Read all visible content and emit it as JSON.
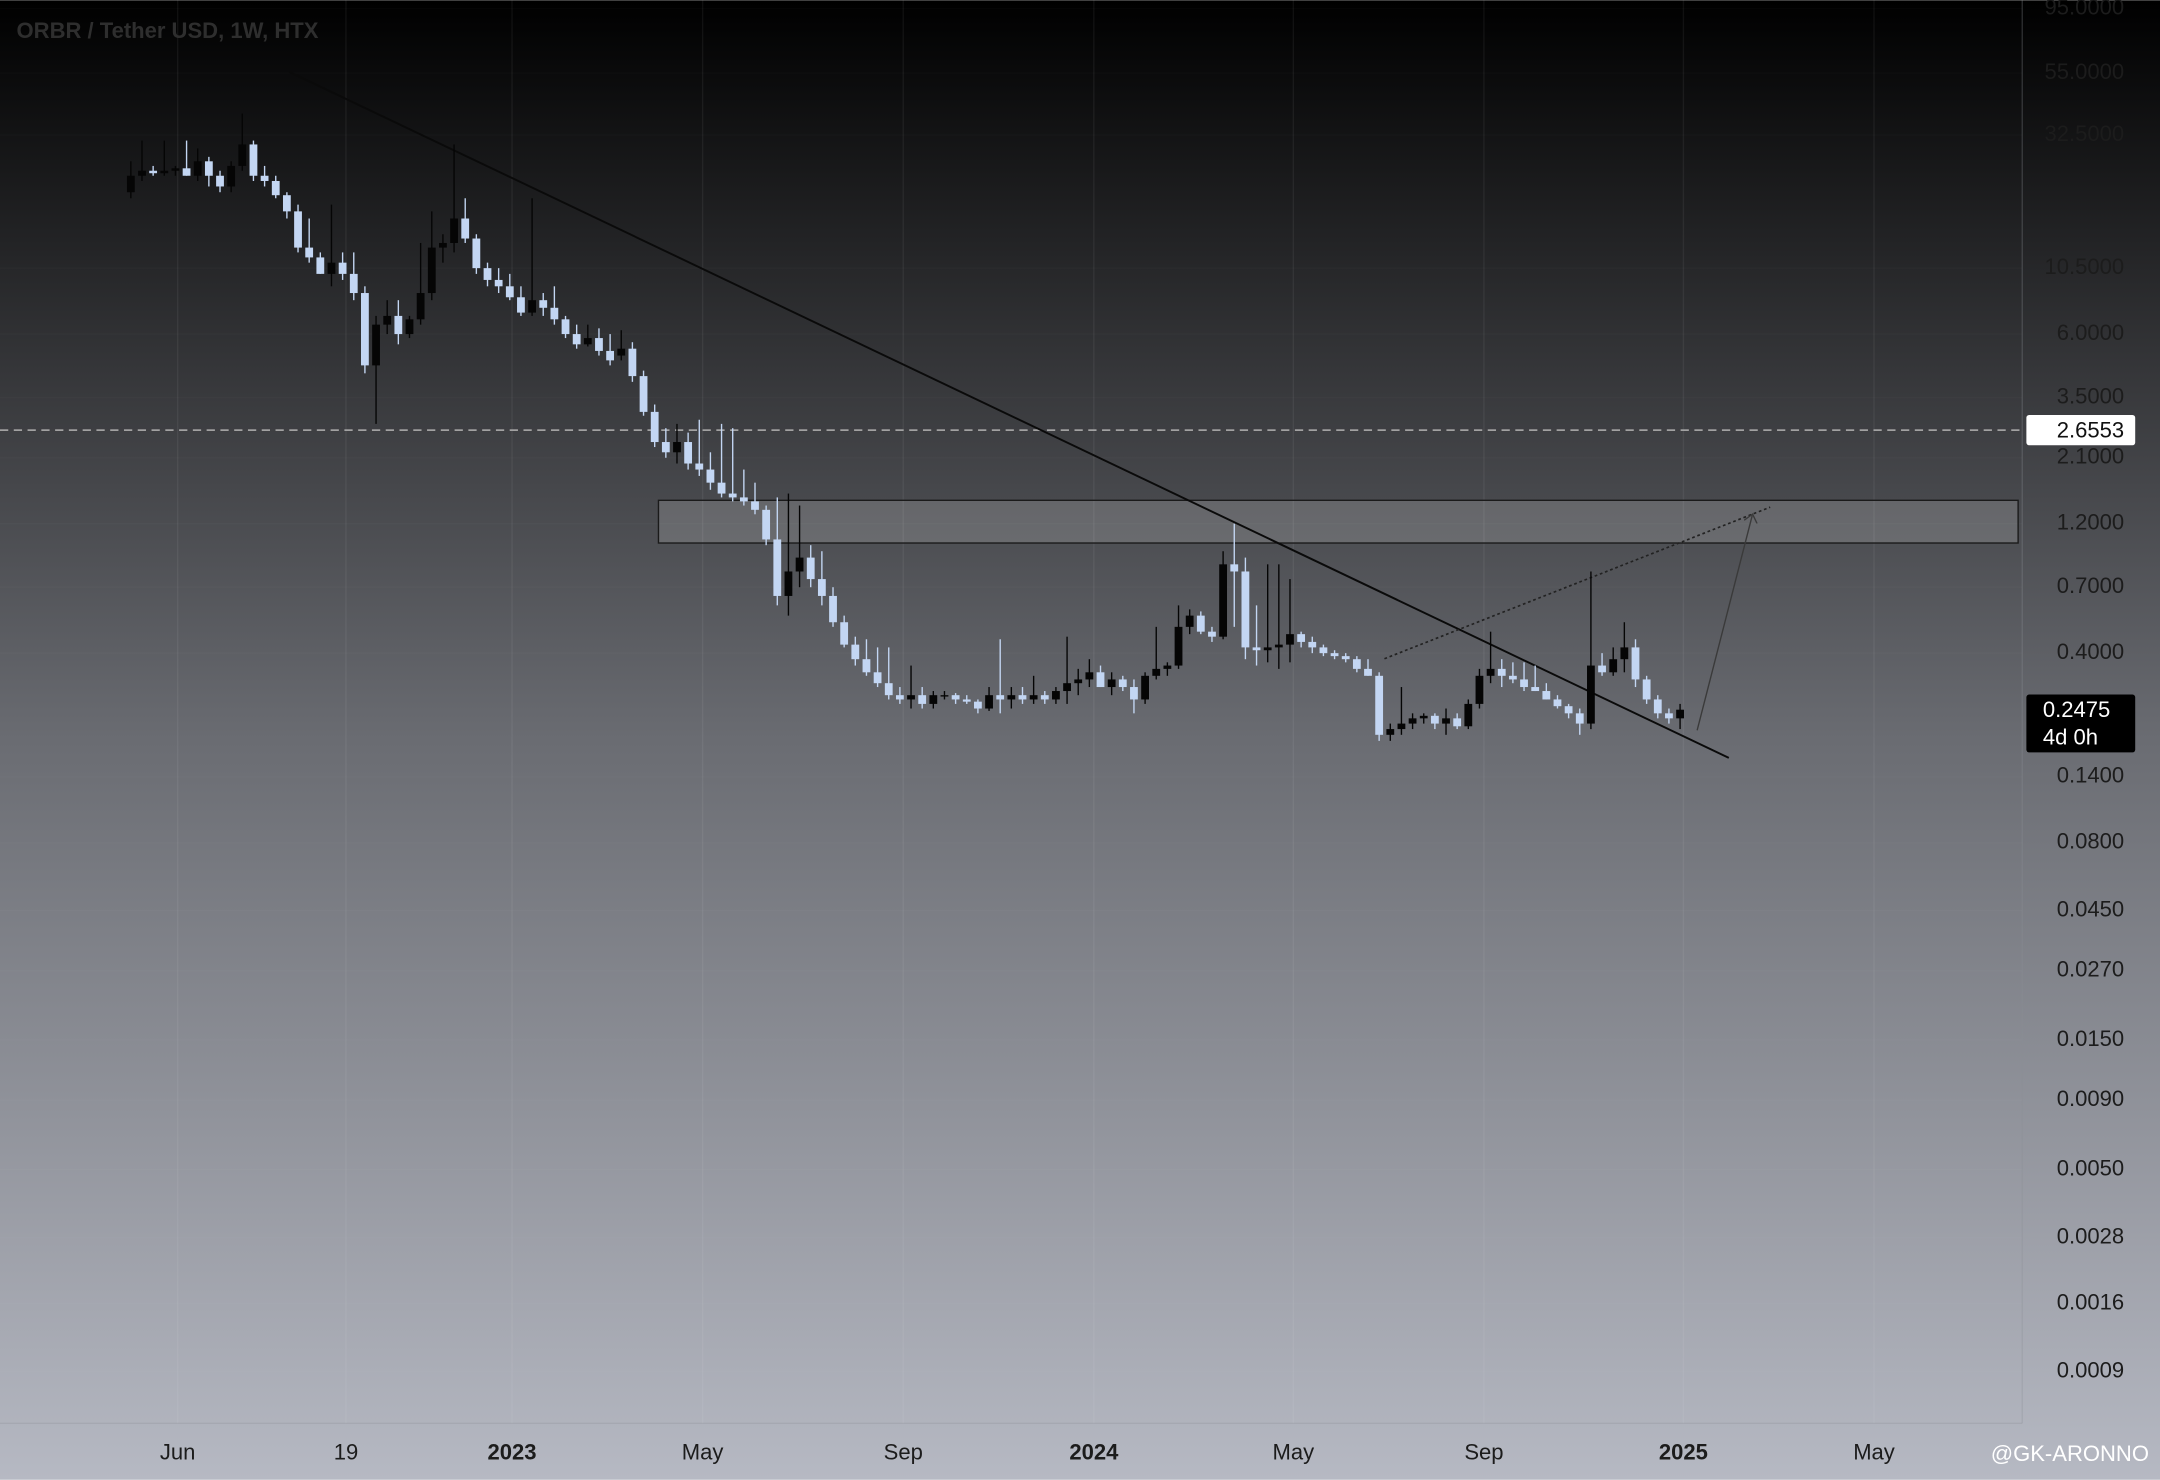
{
  "chart_data": {
    "type": "candlestick",
    "title": "ORBR / Tether USD, 1W, HTX",
    "watermark": "@GK-ARONNO",
    "log_scale": true,
    "up_color": "#050505",
    "down_color": "#c3d6f3",
    "ylim": [
      0.00058,
      102
    ],
    "yticks": [
      {
        "value": 95,
        "label": "95.0000"
      },
      {
        "value": 55,
        "label": "55.0000"
      },
      {
        "value": 32.5,
        "label": "32.5000"
      },
      {
        "value": 10.5,
        "label": "10.5000"
      },
      {
        "value": 6,
        "label": "6.0000"
      },
      {
        "value": 3.5,
        "label": "3.5000"
      },
      {
        "value": 2.1,
        "label": "2.1000"
      },
      {
        "value": 1.2,
        "label": "1.2000"
      },
      {
        "value": 0.7,
        "label": "0.7000"
      },
      {
        "value": 0.4,
        "label": "0.4000"
      },
      {
        "value": 0.14,
        "label": "0.1400"
      },
      {
        "value": 0.08,
        "label": "0.0800"
      },
      {
        "value": 0.045,
        "label": "0.0450"
      },
      {
        "value": 0.027,
        "label": "0.0270"
      },
      {
        "value": 0.015,
        "label": "0.0150"
      },
      {
        "value": 0.009,
        "label": "0.0090"
      },
      {
        "value": 0.005,
        "label": "0.0050"
      },
      {
        "value": 0.0028,
        "label": "0.0028"
      },
      {
        "value": 0.0016,
        "label": "0.0016"
      },
      {
        "value": 0.0009,
        "label": "0.0009"
      }
    ],
    "xlim": [
      -11.74,
      169.7
    ],
    "xticks": [
      {
        "value": 4.2,
        "label": "Jun"
      },
      {
        "value": 19.3,
        "label": "19"
      },
      {
        "value": 34.2,
        "label": "2023"
      },
      {
        "value": 51.3,
        "label": "May"
      },
      {
        "value": 69.3,
        "label": "Sep"
      },
      {
        "value": 86.4,
        "label": "2024"
      },
      {
        "value": 104.3,
        "label": "May"
      },
      {
        "value": 121.4,
        "label": "Sep"
      },
      {
        "value": 139.3,
        "label": "2025"
      },
      {
        "value": 156.4,
        "label": "May"
      }
    ],
    "hline": 2.6553,
    "countdown": "4d 0h",
    "ohlc": [
      [
        20,
        26,
        19,
        23
      ],
      [
        23,
        31,
        22,
        24
      ],
      [
        24,
        25,
        23,
        23.5
      ],
      [
        23.5,
        31,
        23,
        24
      ],
      [
        24,
        25,
        23,
        24.5
      ],
      [
        24.5,
        31,
        23,
        23
      ],
      [
        23,
        29,
        22,
        26
      ],
      [
        26,
        27,
        21,
        23
      ],
      [
        23,
        24,
        20,
        21
      ],
      [
        21,
        26,
        20,
        25
      ],
      [
        25,
        39,
        24,
        30
      ],
      [
        30,
        31,
        22,
        23
      ],
      [
        23,
        25,
        21,
        22
      ],
      [
        22,
        23,
        19,
        19.5
      ],
      [
        19.5,
        20,
        16,
        17
      ],
      [
        17,
        18,
        12,
        12.5
      ],
      [
        12.5,
        16,
        11,
        11.5
      ],
      [
        11.5,
        12,
        10,
        10
      ],
      [
        10,
        18,
        9,
        11
      ],
      [
        11,
        12,
        9.5,
        10
      ],
      [
        10,
        12,
        8,
        8.5
      ],
      [
        8.5,
        9,
        4.3,
        4.6
      ],
      [
        4.6,
        7,
        2.8,
        6.5
      ],
      [
        6.5,
        8,
        6,
        7
      ],
      [
        7,
        8,
        5.5,
        6
      ],
      [
        6,
        7,
        5.8,
        6.8
      ],
      [
        6.8,
        13,
        6.5,
        8.5
      ],
      [
        8.5,
        17,
        8,
        12.5
      ],
      [
        12.5,
        14,
        11,
        13
      ],
      [
        13,
        30,
        12,
        16
      ],
      [
        16,
        19,
        13,
        13.5
      ],
      [
        13.5,
        14,
        10,
        10.5
      ],
      [
        10.5,
        11,
        9,
        9.5
      ],
      [
        9.5,
        10.5,
        8.5,
        9
      ],
      [
        9,
        10,
        8,
        8.2
      ],
      [
        8.2,
        9,
        7,
        7.2
      ],
      [
        7.2,
        19,
        7,
        8
      ],
      [
        8,
        8.5,
        7,
        7.5
      ],
      [
        7.5,
        9,
        6.5,
        6.8
      ],
      [
        6.8,
        7,
        5.8,
        6
      ],
      [
        6,
        6.5,
        5.3,
        5.5
      ],
      [
        5.5,
        6.5,
        5.4,
        5.8
      ],
      [
        5.8,
        6.3,
        5,
        5.2
      ],
      [
        5.2,
        6,
        4.6,
        4.8
      ],
      [
        5,
        6.2,
        4.8,
        5.3
      ],
      [
        5.3,
        5.6,
        4,
        4.2
      ],
      [
        4.2,
        4.4,
        3,
        3.1
      ],
      [
        3.1,
        3.3,
        2.3,
        2.4
      ],
      [
        2.4,
        2.7,
        2.1,
        2.2
      ],
      [
        2.2,
        2.8,
        2,
        2.4
      ],
      [
        2.4,
        2.6,
        1.9,
        2
      ],
      [
        2,
        2.9,
        1.8,
        1.9
      ],
      [
        1.9,
        2.2,
        1.6,
        1.7
      ],
      [
        1.7,
        2.8,
        1.5,
        1.55
      ],
      [
        1.55,
        2.7,
        1.45,
        1.5
      ],
      [
        1.5,
        1.9,
        1.4,
        1.45
      ],
      [
        1.45,
        1.7,
        1.3,
        1.35
      ],
      [
        1.35,
        1.4,
        1.0,
        1.05
      ],
      [
        1.05,
        1.5,
        0.6,
        0.65
      ],
      [
        0.65,
        1.55,
        0.55,
        0.8
      ],
      [
        0.8,
        1.4,
        0.7,
        0.9
      ],
      [
        0.9,
        1.0,
        0.7,
        0.75
      ],
      [
        0.75,
        0.95,
        0.6,
        0.65
      ],
      [
        0.65,
        0.7,
        0.5,
        0.52
      ],
      [
        0.52,
        0.55,
        0.42,
        0.43
      ],
      [
        0.43,
        0.46,
        0.36,
        0.38
      ],
      [
        0.38,
        0.45,
        0.33,
        0.34
      ],
      [
        0.34,
        0.42,
        0.3,
        0.31
      ],
      [
        0.31,
        0.42,
        0.27,
        0.28
      ],
      [
        0.28,
        0.3,
        0.26,
        0.27
      ],
      [
        0.27,
        0.36,
        0.25,
        0.28
      ],
      [
        0.28,
        0.3,
        0.25,
        0.26
      ],
      [
        0.26,
        0.29,
        0.25,
        0.28
      ],
      [
        0.28,
        0.29,
        0.27,
        0.28
      ],
      [
        0.28,
        0.285,
        0.26,
        0.27
      ],
      [
        0.27,
        0.28,
        0.26,
        0.265
      ],
      [
        0.265,
        0.27,
        0.24,
        0.25
      ],
      [
        0.25,
        0.3,
        0.245,
        0.28
      ],
      [
        0.28,
        0.45,
        0.24,
        0.27
      ],
      [
        0.27,
        0.3,
        0.25,
        0.28
      ],
      [
        0.28,
        0.3,
        0.26,
        0.27
      ],
      [
        0.27,
        0.33,
        0.26,
        0.28
      ],
      [
        0.28,
        0.29,
        0.26,
        0.27
      ],
      [
        0.27,
        0.3,
        0.26,
        0.29
      ],
      [
        0.29,
        0.46,
        0.26,
        0.31
      ],
      [
        0.31,
        0.35,
        0.28,
        0.32
      ],
      [
        0.32,
        0.38,
        0.3,
        0.34
      ],
      [
        0.34,
        0.36,
        0.3,
        0.3
      ],
      [
        0.3,
        0.34,
        0.28,
        0.32
      ],
      [
        0.32,
        0.33,
        0.29,
        0.3
      ],
      [
        0.3,
        0.32,
        0.24,
        0.27
      ],
      [
        0.27,
        0.34,
        0.26,
        0.33
      ],
      [
        0.33,
        0.5,
        0.32,
        0.35
      ],
      [
        0.35,
        0.37,
        0.33,
        0.36
      ],
      [
        0.36,
        0.6,
        0.35,
        0.5
      ],
      [
        0.5,
        0.58,
        0.47,
        0.55
      ],
      [
        0.55,
        0.57,
        0.47,
        0.48
      ],
      [
        0.48,
        0.5,
        0.44,
        0.46
      ],
      [
        0.46,
        0.95,
        0.45,
        0.85
      ],
      [
        0.85,
        1.2,
        0.5,
        0.8
      ],
      [
        0.8,
        0.9,
        0.38,
        0.42
      ],
      [
        0.42,
        0.6,
        0.36,
        0.41
      ],
      [
        0.41,
        0.85,
        0.37,
        0.42
      ],
      [
        0.42,
        0.85,
        0.35,
        0.43
      ],
      [
        0.43,
        0.75,
        0.37,
        0.47
      ],
      [
        0.47,
        0.48,
        0.42,
        0.44
      ],
      [
        0.44,
        0.46,
        0.4,
        0.42
      ],
      [
        0.42,
        0.43,
        0.39,
        0.4
      ],
      [
        0.4,
        0.41,
        0.38,
        0.39
      ],
      [
        0.39,
        0.4,
        0.37,
        0.38
      ],
      [
        0.38,
        0.39,
        0.34,
        0.35
      ],
      [
        0.35,
        0.38,
        0.33,
        0.33
      ],
      [
        0.33,
        0.34,
        0.19,
        0.2
      ],
      [
        0.2,
        0.22,
        0.19,
        0.21
      ],
      [
        0.21,
        0.3,
        0.2,
        0.22
      ],
      [
        0.22,
        0.24,
        0.21,
        0.23
      ],
      [
        0.23,
        0.24,
        0.22,
        0.235
      ],
      [
        0.235,
        0.24,
        0.21,
        0.22
      ],
      [
        0.22,
        0.25,
        0.2,
        0.23
      ],
      [
        0.23,
        0.24,
        0.21,
        0.215
      ],
      [
        0.215,
        0.27,
        0.21,
        0.26
      ],
      [
        0.26,
        0.35,
        0.25,
        0.33
      ],
      [
        0.33,
        0.48,
        0.31,
        0.35
      ],
      [
        0.35,
        0.38,
        0.3,
        0.33
      ],
      [
        0.33,
        0.37,
        0.31,
        0.32
      ],
      [
        0.32,
        0.37,
        0.29,
        0.3
      ],
      [
        0.3,
        0.36,
        0.29,
        0.29
      ],
      [
        0.29,
        0.31,
        0.27,
        0.27
      ],
      [
        0.27,
        0.28,
        0.25,
        0.255
      ],
      [
        0.255,
        0.26,
        0.23,
        0.24
      ],
      [
        0.24,
        0.25,
        0.2,
        0.22
      ],
      [
        0.22,
        0.8,
        0.21,
        0.36
      ],
      [
        0.36,
        0.4,
        0.33,
        0.34
      ],
      [
        0.34,
        0.42,
        0.33,
        0.38
      ],
      [
        0.38,
        0.52,
        0.34,
        0.42
      ],
      [
        0.42,
        0.45,
        0.3,
        0.32
      ],
      [
        0.32,
        0.33,
        0.26,
        0.27
      ],
      [
        0.27,
        0.28,
        0.23,
        0.24
      ],
      [
        0.24,
        0.25,
        0.22,
        0.23
      ],
      [
        0.23,
        0.26,
        0.21,
        0.2475
      ]
    ]
  }
}
